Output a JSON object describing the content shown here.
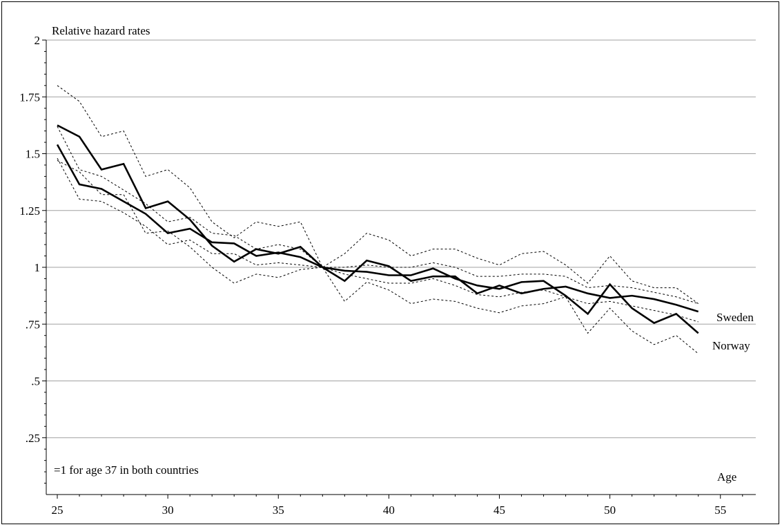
{
  "chart_data": {
    "type": "line",
    "title": "",
    "ylabel": "Relative hazard rates",
    "xlabel": "Age",
    "note": "=1 for age 37 in both countries",
    "xlim": [
      24.5,
      56.6
    ],
    "ylim": [
      0,
      2
    ],
    "x_ticks": [
      25,
      30,
      35,
      40,
      45,
      50,
      55
    ],
    "x_tick_labels": [
      "25",
      "30",
      "35",
      "40",
      "45",
      "50",
      "55"
    ],
    "y_ticks": [
      0.25,
      0.5,
      0.75,
      1,
      1.25,
      1.5,
      1.75,
      2
    ],
    "y_tick_labels": [
      ".25",
      ".5",
      ".75",
      "1",
      "1.25",
      "1.5",
      "1.75",
      "2"
    ],
    "grid": true,
    "x": [
      25,
      26,
      27,
      28,
      29,
      30,
      31,
      32,
      33,
      34,
      35,
      36,
      37,
      38,
      39,
      40,
      41,
      42,
      43,
      44,
      45,
      46,
      47,
      48,
      49,
      50,
      51,
      52,
      53,
      54
    ],
    "series": [
      {
        "name": "Sweden",
        "style": "solid",
        "values": [
          1.54,
          1.365,
          1.345,
          1.29,
          1.235,
          1.15,
          1.17,
          1.11,
          1.105,
          1.05,
          1.065,
          1.045,
          1.0,
          0.985,
          0.98,
          0.965,
          0.965,
          0.995,
          0.95,
          0.92,
          0.905,
          0.935,
          0.94,
          0.875,
          0.795,
          0.925,
          0.82,
          0.755,
          0.795,
          0.71
        ]
      },
      {
        "name": "Norway",
        "style": "solid",
        "values": [
          1.625,
          1.575,
          1.43,
          1.455,
          1.26,
          1.29,
          1.21,
          1.095,
          1.025,
          1.08,
          1.06,
          1.09,
          1.0,
          0.94,
          1.03,
          1.005,
          0.94,
          0.96,
          0.96,
          0.885,
          0.92,
          0.885,
          0.905,
          0.915,
          0.885,
          0.865,
          0.875,
          0.86,
          0.835,
          0.805
        ]
      },
      {
        "name": "",
        "style": "dotted",
        "values": [
          1.8,
          1.73,
          1.575,
          1.6,
          1.4,
          1.43,
          1.35,
          1.2,
          1.13,
          1.2,
          1.18,
          1.2,
          1.0,
          1.06,
          1.15,
          1.12,
          1.05,
          1.08,
          1.08,
          1.04,
          1.01,
          1.06,
          1.07,
          1.01,
          0.93,
          1.05,
          0.94,
          0.91,
          0.91,
          0.84
        ]
      },
      {
        "name": "",
        "style": "dotted",
        "values": [
          1.47,
          1.42,
          1.32,
          1.32,
          1.15,
          1.16,
          1.09,
          1.0,
          0.93,
          0.97,
          0.955,
          0.99,
          1.0,
          0.85,
          0.935,
          0.9,
          0.84,
          0.86,
          0.85,
          0.82,
          0.8,
          0.83,
          0.84,
          0.87,
          0.71,
          0.82,
          0.72,
          0.66,
          0.7,
          0.62
        ]
      },
      {
        "name": "",
        "style": "dotted",
        "values": [
          1.62,
          1.43,
          1.4,
          1.34,
          1.28,
          1.2,
          1.22,
          1.15,
          1.14,
          1.08,
          1.1,
          1.08,
          1.0,
          1.0,
          1.01,
          1.0,
          1.0,
          1.02,
          1.0,
          0.96,
          0.96,
          0.97,
          0.97,
          0.96,
          0.91,
          0.92,
          0.91,
          0.89,
          0.87,
          0.84
        ]
      },
      {
        "name": "",
        "style": "dotted",
        "values": [
          1.48,
          1.3,
          1.29,
          1.24,
          1.18,
          1.1,
          1.12,
          1.06,
          1.06,
          1.01,
          1.02,
          1.01,
          1.0,
          0.97,
          0.95,
          0.93,
          0.93,
          0.95,
          0.92,
          0.88,
          0.87,
          0.89,
          0.9,
          0.87,
          0.84,
          0.85,
          0.83,
          0.81,
          0.79,
          0.76
        ]
      }
    ]
  }
}
